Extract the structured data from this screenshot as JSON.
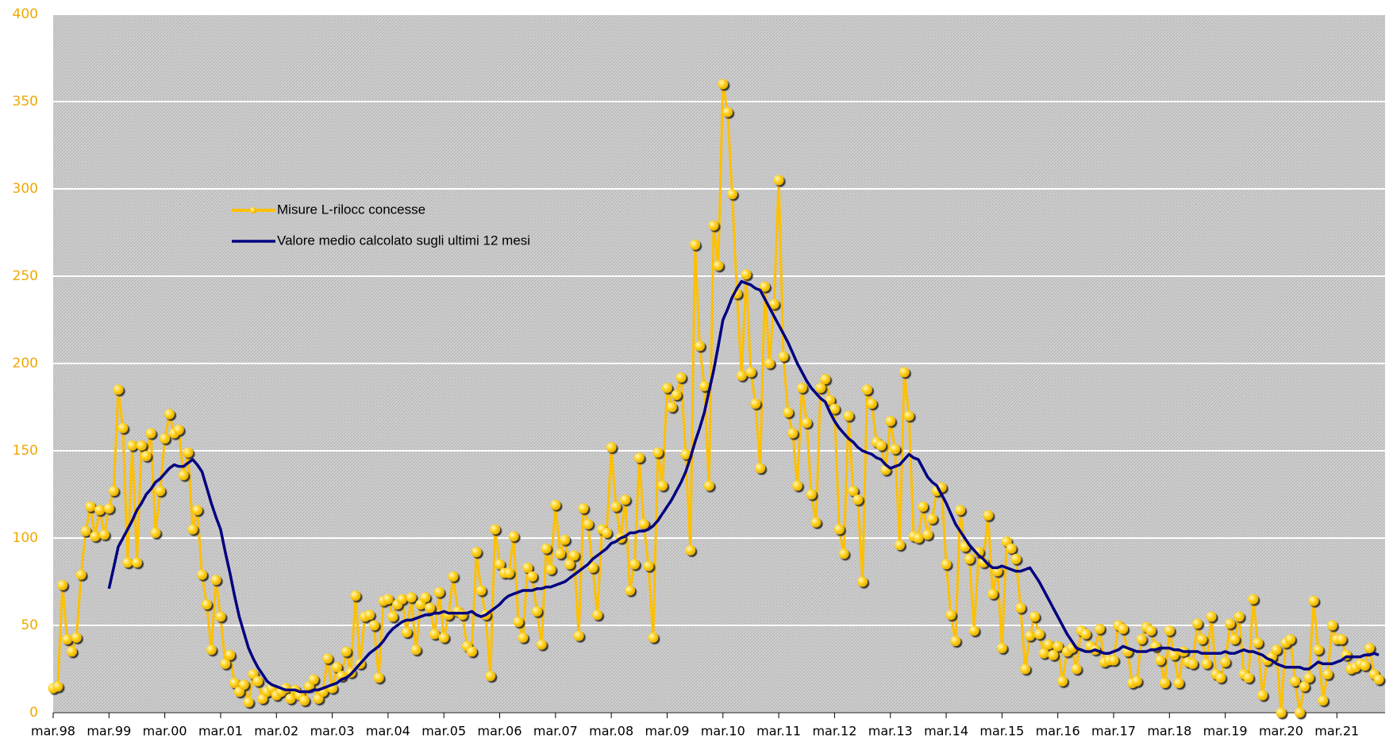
{
  "chart_data": {
    "type": "line",
    "legend_position": "upper left",
    "grid": true,
    "xlim": [
      0,
      285
    ],
    "xticks": [
      {
        "value": 0,
        "label": "mar.98"
      },
      {
        "value": 12,
        "label": "mar.99"
      },
      {
        "value": 24,
        "label": "mar.00"
      },
      {
        "value": 36,
        "label": "mar.01"
      },
      {
        "value": 48,
        "label": "mar.02"
      },
      {
        "value": 60,
        "label": "mar.03"
      },
      {
        "value": 72,
        "label": "mar.04"
      },
      {
        "value": 84,
        "label": "mar.05"
      },
      {
        "value": 96,
        "label": "mar.06"
      },
      {
        "value": 108,
        "label": "mar.07"
      },
      {
        "value": 120,
        "label": "mar.08"
      },
      {
        "value": 132,
        "label": "mar.09"
      },
      {
        "value": 144,
        "label": "mar.10"
      },
      {
        "value": 156,
        "label": "mar.11"
      },
      {
        "value": 168,
        "label": "mar.12"
      },
      {
        "value": 180,
        "label": "mar.13"
      },
      {
        "value": 192,
        "label": "mar.14"
      },
      {
        "value": 204,
        "label": "mar.15"
      },
      {
        "value": 216,
        "label": "mar.16"
      },
      {
        "value": 228,
        "label": "mar.17"
      },
      {
        "value": 240,
        "label": "mar.18"
      },
      {
        "value": 252,
        "label": "mar.19"
      },
      {
        "value": 264,
        "label": "mar.20"
      },
      {
        "value": 276,
        "label": "mar.21"
      }
    ],
    "ylim": [
      0,
      400
    ],
    "yticks": [
      0,
      50,
      100,
      150,
      200,
      250,
      300,
      350,
      400
    ],
    "series": [
      {
        "name": "Misure L-rilocc concesse",
        "color": "#ffc000",
        "markers": true,
        "values": [
          14,
          15,
          73,
          42,
          35,
          43,
          79,
          104,
          118,
          101,
          116,
          102,
          117,
          127,
          185,
          163,
          86,
          153,
          86,
          153,
          147,
          160,
          103,
          127,
          157,
          171,
          160,
          162,
          136,
          149,
          105,
          116,
          79,
          62,
          36,
          76,
          55,
          28,
          33,
          17,
          12,
          16,
          6,
          22,
          18,
          8,
          12,
          14,
          10,
          12,
          14,
          8,
          13,
          10,
          7,
          15,
          19,
          8,
          12,
          31,
          14,
          26,
          21,
          35,
          23,
          67,
          28,
          55,
          56,
          50,
          20,
          64,
          65,
          55,
          62,
          65,
          46,
          66,
          36,
          62,
          66,
          60,
          45,
          69,
          43,
          56,
          78,
          58,
          56,
          38,
          35,
          92,
          70,
          56,
          21,
          105,
          85,
          80,
          80,
          101,
          52,
          43,
          83,
          78,
          58,
          39,
          94,
          82,
          119,
          91,
          99,
          85,
          90,
          44,
          117,
          108,
          83,
          56,
          105,
          103,
          152,
          118,
          100,
          122,
          70,
          85,
          146,
          108,
          84,
          43,
          149,
          130,
          186,
          175,
          182,
          192,
          148,
          93,
          268,
          210,
          187,
          130,
          279,
          256,
          360,
          344,
          297,
          240,
          193,
          251,
          195,
          177,
          140,
          244,
          200,
          234,
          305,
          204,
          172,
          160,
          130,
          186,
          166,
          125,
          109,
          186,
          191,
          179,
          174,
          105,
          91,
          170,
          127,
          122,
          75,
          185,
          177,
          155,
          153,
          139,
          167,
          151,
          96,
          195,
          170,
          101,
          100,
          118,
          102,
          111,
          127,
          129,
          85,
          56,
          41,
          116,
          95,
          88,
          47,
          92,
          86,
          113,
          68,
          81,
          37,
          98,
          94,
          88,
          60,
          25,
          44,
          55,
          45,
          34,
          39,
          33,
          38,
          18,
          35,
          37,
          25,
          47,
          45,
          38,
          36,
          48,
          29,
          30,
          30,
          50,
          48,
          35,
          17,
          18,
          42,
          49,
          47,
          38,
          30,
          17,
          47,
          33,
          17,
          35,
          29,
          28,
          51,
          42,
          28,
          55,
          22,
          20,
          29,
          51,
          42,
          55,
          22,
          20,
          65,
          40,
          10,
          30,
          32,
          36,
          0,
          40,
          42,
          18,
          0,
          15,
          20,
          64,
          36,
          7,
          22,
          50,
          42,
          42,
          33,
          25,
          26,
          28,
          27,
          37,
          22,
          19
        ]
      },
      {
        "name": "Valore medio calcolato sugli ultimi 12 mesi",
        "color": "#000080",
        "markers": false,
        "values": [
          null,
          null,
          null,
          null,
          null,
          null,
          null,
          null,
          null,
          null,
          null,
          null,
          71,
          83,
          95,
          100,
          105,
          110,
          116,
          120,
          125,
          128,
          132,
          134,
          137,
          140,
          142,
          141,
          141,
          143,
          145,
          142,
          138,
          129,
          120,
          112,
          105,
          92,
          80,
          67,
          55,
          46,
          37,
          31,
          26,
          22,
          18,
          16,
          15,
          14,
          13,
          13,
          13,
          12,
          12,
          12,
          13,
          13,
          14,
          15,
          16,
          17,
          19,
          20,
          22,
          25,
          28,
          31,
          34,
          36,
          38,
          41,
          45,
          48,
          50,
          52,
          53,
          53,
          54,
          55,
          56,
          56,
          57,
          57,
          58,
          57,
          57,
          57,
          57,
          57,
          58,
          56,
          55,
          56,
          58,
          60,
          62,
          65,
          67,
          68,
          69,
          70,
          70,
          70,
          71,
          71,
          72,
          72,
          73,
          74,
          75,
          77,
          79,
          81,
          83,
          85,
          88,
          90,
          92,
          94,
          97,
          98,
          100,
          101,
          103,
          103,
          104,
          104,
          105,
          107,
          110,
          114,
          118,
          122,
          127,
          132,
          138,
          146,
          155,
          163,
          172,
          184,
          196,
          210,
          225,
          231,
          238,
          243,
          247,
          246,
          245,
          243,
          242,
          237,
          232,
          227,
          222,
          217,
          212,
          206,
          200,
          195,
          190,
          186,
          183,
          180,
          178,
          172,
          167,
          163,
          160,
          157,
          155,
          152,
          150,
          149,
          148,
          146,
          145,
          142,
          140,
          141,
          142,
          145,
          148,
          146,
          145,
          140,
          135,
          132,
          130,
          125,
          120,
          114,
          108,
          104,
          100,
          96,
          93,
          90,
          88,
          85,
          83,
          83,
          84,
          83,
          82,
          81,
          81,
          82,
          83,
          79,
          75,
          70,
          65,
          60,
          55,
          50,
          45,
          41,
          37,
          36,
          35,
          35,
          36,
          35,
          34,
          34,
          35,
          36,
          38,
          37,
          36,
          35,
          35,
          35,
          36,
          36,
          37,
          37,
          37,
          36,
          36,
          35,
          35,
          35,
          35,
          34,
          34,
          34,
          34,
          34,
          35,
          34,
          34,
          35,
          36,
          35,
          35,
          34,
          33,
          31,
          30,
          28,
          27,
          26,
          26,
          26,
          26,
          25,
          25,
          27,
          29,
          28,
          28,
          28,
          29,
          30,
          32,
          32,
          32,
          32,
          33,
          33,
          34,
          33
        ]
      }
    ]
  }
}
